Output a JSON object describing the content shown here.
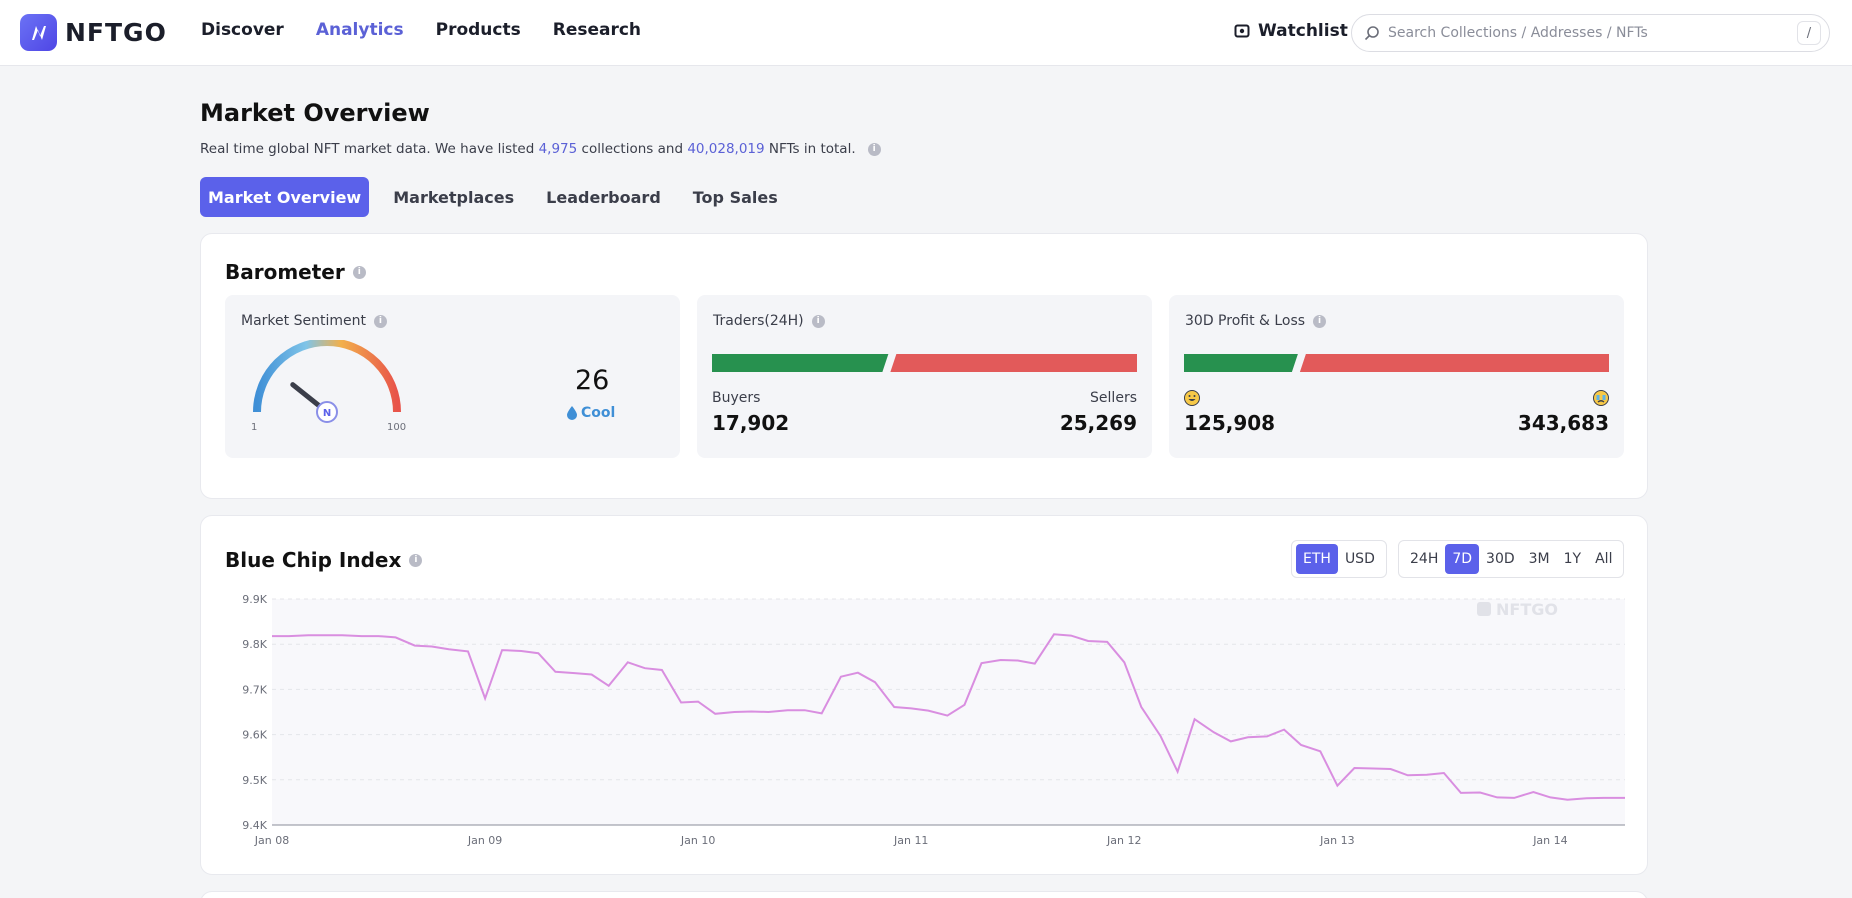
{
  "header": {
    "logo_text": "NFTGO",
    "nav": [
      {
        "label": "Discover",
        "active": false
      },
      {
        "label": "Analytics",
        "active": true
      },
      {
        "label": "Products",
        "active": false
      },
      {
        "label": "Research",
        "active": false
      }
    ],
    "watchlist_label": "Watchlist",
    "search_placeholder": "Search Collections / Addresses / NFTs",
    "search_shortcut": "/"
  },
  "page": {
    "title": "Market Overview",
    "subtitle_prefix": "Real time global NFT market data. We have listed ",
    "collections_count": "4,975",
    "subtitle_mid": " collections and ",
    "nfts_count": "40,028,019",
    "subtitle_suffix": " NFTs in total."
  },
  "tabs": [
    {
      "label": "Market Overview",
      "active": true
    },
    {
      "label": "Marketplaces",
      "active": false
    },
    {
      "label": "Leaderboard",
      "active": false
    },
    {
      "label": "Top Sales",
      "active": false
    }
  ],
  "barometer": {
    "title": "Barometer",
    "sentiment": {
      "label": "Market Sentiment",
      "value": "26",
      "status": "Cool",
      "min": "1",
      "max": "100",
      "level": 26
    },
    "traders": {
      "label": "Traders(24H)",
      "buyers_label": "Buyers",
      "buyers_value": "17,902",
      "sellers_label": "Sellers",
      "sellers_value": "25,269",
      "buyers_share": 0.415
    },
    "pnl": {
      "label": "30D Profit & Loss",
      "profit_value": "125,908",
      "loss_value": "343,683",
      "profit_share": 0.268
    },
    "colors": {
      "green": "#27914f",
      "red": "#e25a5a",
      "accent": "#5b61ea"
    }
  },
  "blue_chip": {
    "title": "Blue Chip Index",
    "currency_options": [
      {
        "label": "ETH",
        "active": true
      },
      {
        "label": "USD",
        "active": false
      }
    ],
    "range_options": [
      {
        "label": "24H",
        "active": false
      },
      {
        "label": "7D",
        "active": true
      },
      {
        "label": "30D",
        "active": false
      },
      {
        "label": "3M",
        "active": false
      },
      {
        "label": "1Y",
        "active": false
      },
      {
        "label": "All",
        "active": false
      }
    ],
    "watermark": "NFTGO"
  },
  "chart_data": {
    "type": "line",
    "title": "Blue Chip Index",
    "ylim": [
      9400,
      9900
    ],
    "yticks": [
      "9.4K",
      "9.5K",
      "9.6K",
      "9.7K",
      "9.8K",
      "9.9K"
    ],
    "xticks": [
      "Jan 08",
      "Jan 09",
      "Jan 10",
      "Jan 11",
      "Jan 12",
      "Jan 13",
      "Jan 14"
    ],
    "xrange_days": [
      0,
      6.35
    ],
    "grid": true,
    "line_color": "#d98ee0",
    "series": [
      {
        "x": [
          0,
          0.08,
          0.17,
          0.33,
          0.42,
          0.5,
          0.58,
          0.67,
          0.75,
          0.83,
          0.92,
          1.0,
          1.08,
          1.17,
          1.25,
          1.33,
          1.42,
          1.5,
          1.58,
          1.67,
          1.75,
          1.83,
          1.92,
          2.0,
          2.08,
          2.17,
          2.25,
          2.33,
          2.42,
          2.5,
          2.58,
          2.67,
          2.75,
          2.83,
          2.92,
          3.0,
          3.08,
          3.17,
          3.25,
          3.33,
          3.42,
          3.5,
          3.58,
          3.67,
          3.75,
          3.83,
          3.92,
          4.0,
          4.08,
          4.17,
          4.25,
          4.33,
          4.42,
          4.5,
          4.58,
          4.67,
          4.75,
          4.83,
          4.92,
          5.0,
          5.08,
          5.17,
          5.25,
          5.33,
          5.42,
          5.5,
          5.58,
          5.67,
          5.75,
          5.83,
          5.92,
          6.0,
          6.08,
          6.17,
          6.25,
          6.35
        ],
        "y": [
          9818,
          9818,
          9820,
          9820,
          9818,
          9818,
          9815,
          9797,
          9795,
          9789,
          9784,
          9680,
          9787,
          9785,
          9780,
          9739,
          9736,
          9733,
          9708,
          9760,
          9747,
          9743,
          9671,
          9673,
          9646,
          9650,
          9651,
          9650,
          9654,
          9654,
          9647,
          9728,
          9737,
          9716,
          9661,
          9658,
          9653,
          9642,
          9666,
          9758,
          9765,
          9764,
          9757,
          9822,
          9819,
          9807,
          9805,
          9760,
          9661,
          9597,
          9518,
          9634,
          9605,
          9585,
          9594,
          9596,
          9611,
          9577,
          9563,
          9487,
          9526,
          9525,
          9524,
          9510,
          9511,
          9515,
          9471,
          9472,
          9461,
          9460,
          9473,
          9461,
          9456,
          9459,
          9460,
          9460
        ]
      }
    ]
  }
}
